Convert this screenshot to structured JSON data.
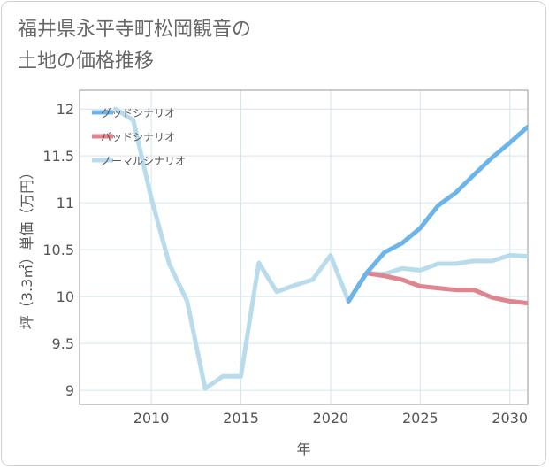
{
  "chart_data": {
    "type": "line",
    "title": "福井県永平寺町松岡観音の\n土地の価格推移",
    "xlabel": "年",
    "ylabel": "坪（3.3㎡）単価（万円）",
    "xlim": [
      2006,
      2031
    ],
    "ylim": [
      8.85,
      12.2
    ],
    "x_ticks": [
      2010,
      2015,
      2020,
      2025,
      2030
    ],
    "y_ticks": [
      9,
      9.5,
      10,
      10.5,
      11,
      11.5,
      12
    ],
    "grid": true,
    "legend_position": "top-left",
    "series": [
      {
        "name": "グッドシナリオ",
        "color": "#6cb5ea",
        "x": [
          2021,
          2022,
          2023,
          2024,
          2025,
          2026,
          2027,
          2028,
          2029,
          2030,
          2031
        ],
        "y": [
          9.95,
          10.25,
          10.47,
          10.57,
          10.73,
          10.97,
          11.11,
          11.3,
          11.48,
          11.64,
          11.81
        ]
      },
      {
        "name": "バッドシナリオ",
        "color": "#e0848f",
        "x": [
          2021,
          2022,
          2023,
          2024,
          2025,
          2026,
          2027,
          2028,
          2029,
          2030,
          2031
        ],
        "y": [
          9.95,
          10.25,
          10.22,
          10.18,
          10.11,
          10.09,
          10.07,
          10.07,
          9.99,
          9.95,
          9.93
        ]
      },
      {
        "name": "ノーマルシナリオ",
        "color": "#b8dcec",
        "x": [
          2008,
          2009,
          2010,
          2011,
          2012,
          2013,
          2014,
          2015,
          2016,
          2017,
          2018,
          2019,
          2020,
          2021,
          2022,
          2023,
          2024,
          2025,
          2026,
          2027,
          2028,
          2029,
          2030,
          2031
        ],
        "y": [
          12.0,
          11.88,
          11.05,
          10.35,
          9.95,
          9.02,
          9.15,
          9.15,
          10.36,
          10.05,
          10.12,
          10.18,
          10.44,
          9.95,
          10.25,
          10.24,
          10.3,
          10.28,
          10.35,
          10.35,
          10.38,
          10.38,
          10.44,
          10.43
        ]
      }
    ]
  }
}
